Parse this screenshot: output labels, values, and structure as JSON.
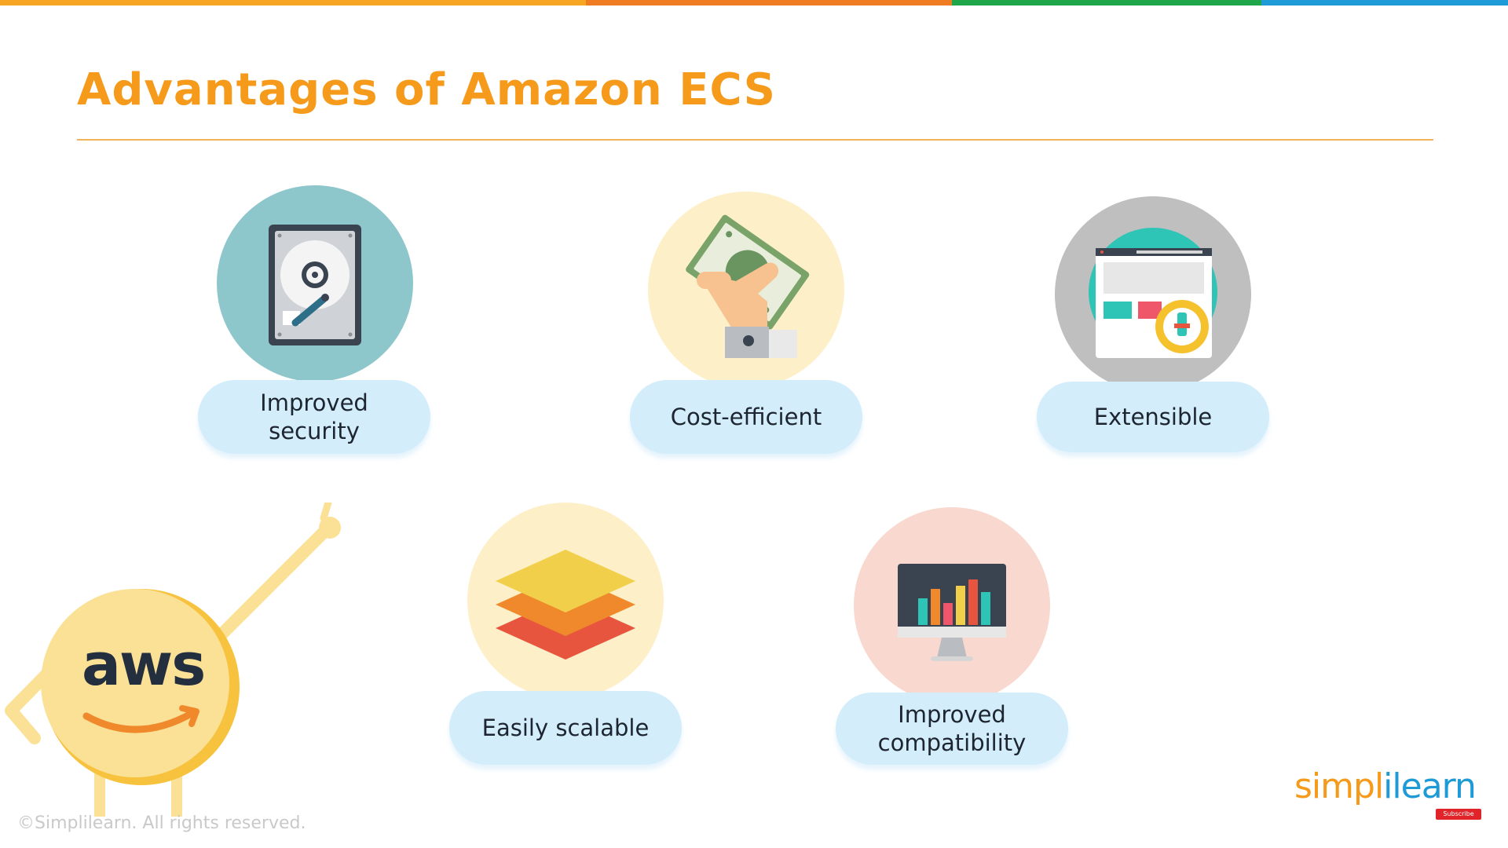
{
  "slide": {
    "title": "Advantages of Amazon ECS",
    "copyright": "©Simplilearn. All rights reserved."
  },
  "brand": {
    "part1": "simpl",
    "part2": "ilearn",
    "subscribe_label": "Subscribe"
  },
  "mascot": {
    "logo_text": "aws"
  },
  "features": [
    {
      "line1": "Improved",
      "line2": "security",
      "icon": "hard-drive-icon"
    },
    {
      "line1": "Cost-efficient",
      "line2": "",
      "icon": "money-hand-icon"
    },
    {
      "line1": "Extensible",
      "line2": "",
      "icon": "browser-gear-icon"
    },
    {
      "line1": "Easily scalable",
      "line2": "",
      "icon": "layers-icon"
    },
    {
      "line1": "Improved",
      "line2": "compatibility",
      "icon": "monitor-chart-icon"
    }
  ],
  "colors": {
    "title": "#f59a1a",
    "divider": "#f1b35a",
    "pill": "#d3edfb",
    "topbar": [
      "#f6a623",
      "#ef7b22",
      "#1fa54a",
      "#1e9ad6"
    ]
  }
}
